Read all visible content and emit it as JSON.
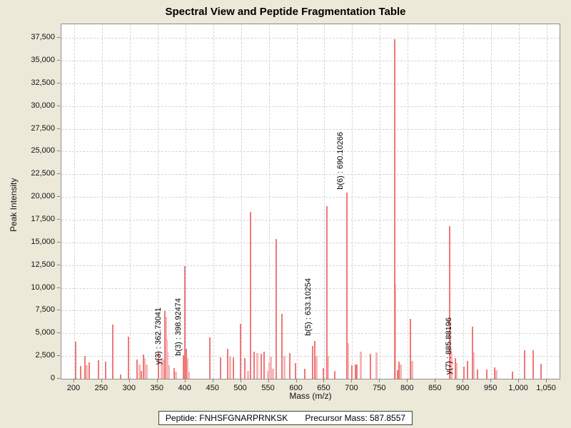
{
  "title": "Spectral View and Peptide Fragmentation Table",
  "footer": {
    "peptide_label": "Peptide: FNHSFGNARPRNKSK",
    "precursor_label": "Precursor Mass: 587.8557"
  },
  "colors": {
    "background": "#ECE9D8",
    "plot_background": "#FFFFFF",
    "plot_border": "#8C8C8C",
    "gridline": "#D4D4D4",
    "peak_main": "#F07878",
    "peak_light": "#F6B6B6",
    "text": "#000000"
  },
  "chart_data": {
    "type": "bar",
    "title": "Spectral View and Peptide Fragmentation Table",
    "xlabel": "Mass (m/z)",
    "ylabel": "Peak Intensity",
    "xlim": [
      177,
      1073
    ],
    "ylim": [
      0,
      39000
    ],
    "grid": "dashed",
    "legend": "none",
    "x_ticks": [
      200,
      250,
      300,
      350,
      400,
      450,
      500,
      550,
      600,
      650,
      700,
      750,
      800,
      850,
      900,
      950,
      1000,
      1050
    ],
    "x_tick_labels": [
      "200",
      "250",
      "300",
      "350",
      "400",
      "450",
      "500",
      "550",
      "600",
      "650",
      "700",
      "750",
      "800",
      "850",
      "900",
      "950",
      "1,000",
      "1,050"
    ],
    "y_ticks": [
      0,
      2500,
      5000,
      7500,
      10000,
      12500,
      15000,
      17500,
      20000,
      22500,
      25000,
      27500,
      30000,
      32500,
      35000,
      37500
    ],
    "y_tick_labels": [
      "0",
      "2,500",
      "5,000",
      "7,500",
      "10,000",
      "12,500",
      "15,000",
      "17,500",
      "20,000",
      "22,500",
      "25,000",
      "27,500",
      "30,000",
      "32,500",
      "35,000",
      "37,500"
    ],
    "annotations": [
      {
        "label": "y(3) : 362.73041",
        "mz": 362.73041,
        "y_base": 1600
      },
      {
        "label": "b(3) : 398.92474",
        "mz": 398.92474,
        "y_base": 2550
      },
      {
        "label": "b(5) : 633.10254",
        "mz": 633.10254,
        "y_base": 4700
      },
      {
        "label": "b(6) : 690.10266",
        "mz": 690.10266,
        "y_base": 20800
      },
      {
        "label": "y(7) : 885.88196",
        "mz": 885.88196,
        "y_base": 450
      }
    ],
    "peaks": [
      [
        203,
        4100,
        0
      ],
      [
        212,
        1400,
        0
      ],
      [
        220,
        2550,
        0
      ],
      [
        223,
        1500,
        1
      ],
      [
        227,
        1800,
        0
      ],
      [
        244,
        2050,
        0
      ],
      [
        256,
        1900,
        0
      ],
      [
        270,
        5960,
        0
      ],
      [
        284,
        450,
        0
      ],
      [
        298,
        4650,
        0
      ],
      [
        313,
        2100,
        0
      ],
      [
        317,
        1600,
        1
      ],
      [
        321,
        900,
        0
      ],
      [
        325,
        2700,
        0
      ],
      [
        327,
        2300,
        1
      ],
      [
        330,
        1600,
        1
      ],
      [
        352,
        2880,
        0
      ],
      [
        357,
        2200,
        1
      ],
      [
        360,
        2100,
        1
      ],
      [
        362.73,
        7430,
        0
      ],
      [
        364.5,
        6810,
        1
      ],
      [
        366,
        4300,
        1
      ],
      [
        368,
        3000,
        1
      ],
      [
        370,
        1500,
        1
      ],
      [
        380,
        1200,
        0
      ],
      [
        383,
        800,
        1
      ],
      [
        396,
        2600,
        0
      ],
      [
        398.92,
        12400,
        0
      ],
      [
        401,
        3270,
        0
      ],
      [
        403.5,
        2300,
        1
      ],
      [
        406,
        800,
        1
      ],
      [
        444,
        4550,
        0
      ],
      [
        463,
        2370,
        0
      ],
      [
        476,
        3270,
        0
      ],
      [
        481,
        2450,
        1
      ],
      [
        486,
        2370,
        0
      ],
      [
        499,
        6040,
        0
      ],
      [
        507,
        2300,
        0
      ],
      [
        513,
        900,
        1
      ],
      [
        517.5,
        18350,
        0
      ],
      [
        524,
        2950,
        0
      ],
      [
        530,
        2800,
        1
      ],
      [
        536,
        2750,
        0
      ],
      [
        542,
        3000,
        0
      ],
      [
        548,
        900,
        1
      ],
      [
        551,
        1800,
        1
      ],
      [
        554,
        2400,
        1
      ],
      [
        557,
        1100,
        1
      ],
      [
        563.8,
        15380,
        0
      ],
      [
        574,
        7180,
        0
      ],
      [
        578,
        2500,
        1
      ],
      [
        588,
        2800,
        0
      ],
      [
        598,
        1700,
        0
      ],
      [
        615,
        1100,
        0
      ],
      [
        629,
        3650,
        0
      ],
      [
        633.1,
        4170,
        0
      ],
      [
        636,
        2500,
        1
      ],
      [
        648,
        1200,
        0
      ],
      [
        654,
        18970,
        0
      ],
      [
        656,
        2500,
        1
      ],
      [
        669,
        900,
        0
      ],
      [
        690.1,
        20450,
        0
      ],
      [
        692,
        3900,
        1
      ],
      [
        700,
        1500,
        0
      ],
      [
        706,
        1550,
        0
      ],
      [
        709,
        1550,
        0
      ],
      [
        715,
        2960,
        1
      ],
      [
        733,
        2780,
        0
      ],
      [
        744,
        2900,
        1
      ],
      [
        776,
        37350,
        0
      ],
      [
        777.5,
        10400,
        1
      ],
      [
        781,
        960,
        0
      ],
      [
        784,
        1910,
        0
      ],
      [
        788,
        1550,
        1
      ],
      [
        805,
        6630,
        0
      ],
      [
        807.5,
        1950,
        1
      ],
      [
        875,
        16780,
        0
      ],
      [
        877,
        3300,
        1
      ],
      [
        879,
        2900,
        1
      ],
      [
        886,
        2270,
        0
      ],
      [
        888,
        1730,
        1
      ],
      [
        901,
        1350,
        0
      ],
      [
        908,
        2000,
        0
      ],
      [
        916,
        5700,
        0
      ],
      [
        918,
        2900,
        1
      ],
      [
        926,
        1000,
        0
      ],
      [
        942,
        1050,
        0
      ],
      [
        956,
        1270,
        0
      ],
      [
        960,
        950,
        1
      ],
      [
        988,
        800,
        0
      ],
      [
        1010,
        3150,
        0
      ],
      [
        1025,
        3150,
        0
      ],
      [
        1039,
        1660,
        0
      ]
    ]
  }
}
